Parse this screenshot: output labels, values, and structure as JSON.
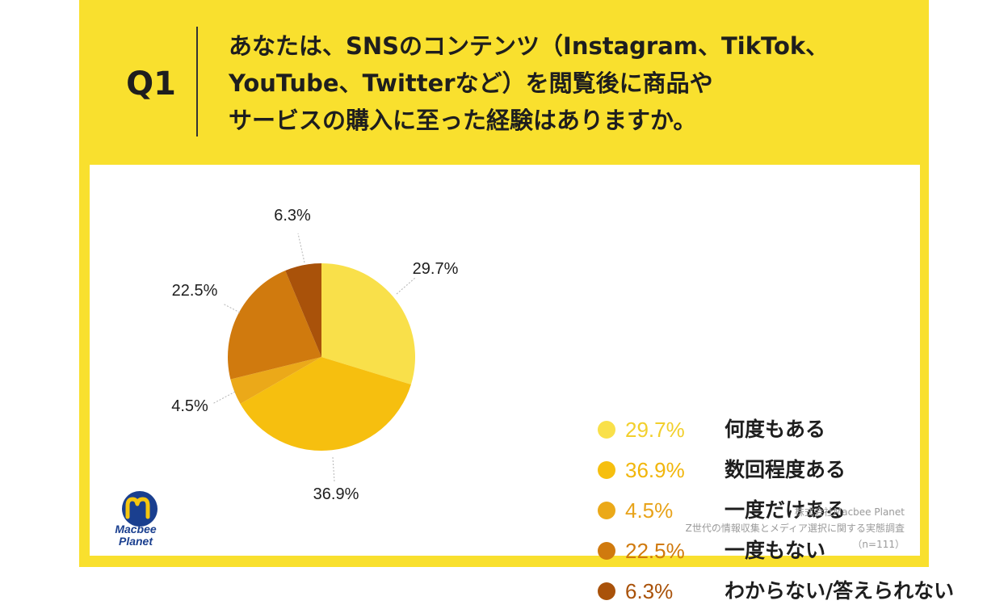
{
  "header": {
    "question_number": "Q1",
    "question_lines": [
      "あなたは、SNSのコンテンツ（Instagram、TikTok、",
      "YouTube、Twitterなど）を閲覧後に商品や",
      "サービスの購入に至った経験はありますか。"
    ]
  },
  "chart_data": {
    "type": "pie",
    "slices": [
      {
        "label": "何度もある",
        "value": 29.7,
        "display": "29.7%",
        "color": "#f9e04a",
        "value_color": "#f2cf2c"
      },
      {
        "label": "数回程度ある",
        "value": 36.9,
        "display": "36.9%",
        "color": "#f6bf0f",
        "value_color": "#f1b60c"
      },
      {
        "label": "一度だけある",
        "value": 4.5,
        "display": "4.5%",
        "color": "#eba919",
        "value_color": "#e8a31a"
      },
      {
        "label": "一度もない",
        "value": 22.5,
        "display": "22.5%",
        "color": "#d07a0e",
        "value_color": "#d07a0e"
      },
      {
        "label": "わからない/答えられない",
        "value": 6.3,
        "display": "6.3%",
        "color": "#a9520a",
        "value_color": "#a9520a"
      }
    ],
    "start_angle_deg": 0,
    "direction": "clockwise",
    "legend_placement": "right"
  },
  "logo": {
    "line1": "Macbee",
    "line2": "Planet",
    "primary_color": "#1a3f8f",
    "accent_color": "#f6c60f"
  },
  "credit": {
    "company": "株式会社Macbee Planet",
    "survey": "Z世代の情報収集とメディア選択に関する実態調査",
    "sample": "（n=111）"
  },
  "colors": {
    "background_yellow": "#f9e02e",
    "card": "#ffffff",
    "text": "#1e1e1e"
  }
}
